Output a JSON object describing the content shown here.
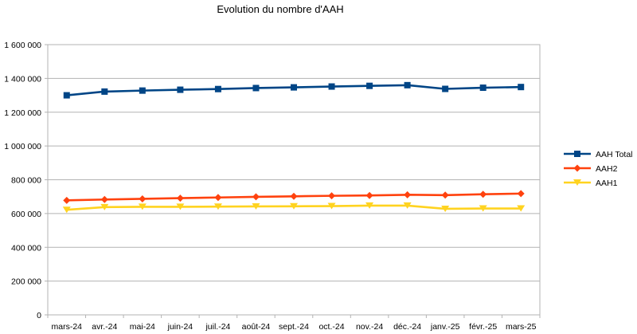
{
  "chart_data": {
    "type": "line",
    "title": "Evolution du nombre d'AAH",
    "xlabel": "",
    "ylabel": "",
    "categories": [
      "mars-24",
      "avr.-24",
      "mai-24",
      "juin-24",
      "juil.-24",
      "août-24",
      "sept.-24",
      "oct.-24",
      "nov.-24",
      "déc.-24",
      "janv.-25",
      "févr.-25",
      "mars-25"
    ],
    "ylim": [
      0,
      1600000
    ],
    "y_ticks": [
      "0",
      "200 000",
      "400 000",
      "600 000",
      "800 000",
      "1 000 000",
      "1 200 000",
      "1 400 000",
      "1 600 000"
    ],
    "grid": "horizontal",
    "legend_position": "right",
    "series": [
      {
        "name": "AAH Total",
        "color": "#004586",
        "marker": "square",
        "values": [
          1300000,
          1322000,
          1328000,
          1333000,
          1337000,
          1343000,
          1347000,
          1352000,
          1356000,
          1360000,
          1338000,
          1345000,
          1349000
        ]
      },
      {
        "name": "AAH2",
        "color": "#ff420e",
        "marker": "diamond",
        "values": [
          678000,
          683000,
          687000,
          691000,
          695000,
          699000,
          702000,
          705000,
          707000,
          711000,
          709000,
          714000,
          718000
        ]
      },
      {
        "name": "AAH1",
        "color": "#ffd320",
        "marker": "triangle-down",
        "values": [
          622000,
          638000,
          640000,
          640000,
          641000,
          642000,
          643000,
          644000,
          647000,
          647000,
          628000,
          630000,
          630000
        ]
      }
    ]
  }
}
